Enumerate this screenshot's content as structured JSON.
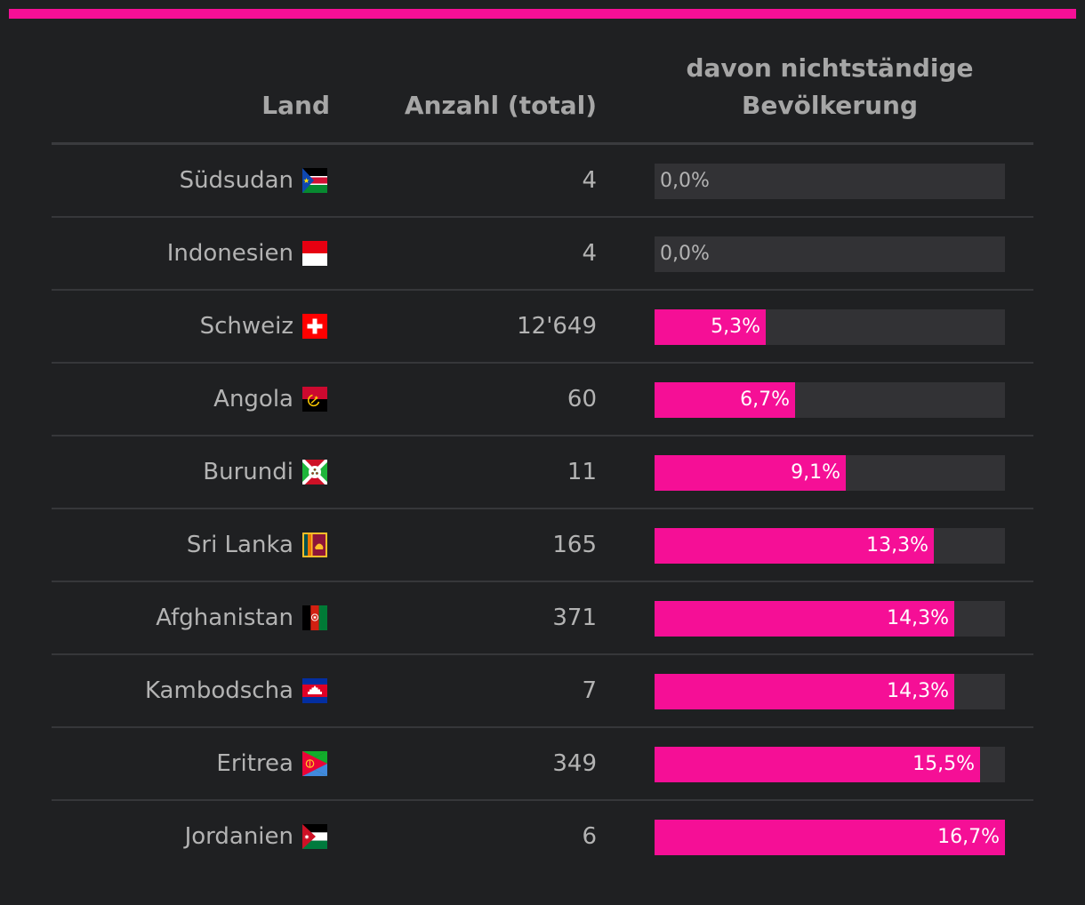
{
  "colors": {
    "accent": "#f50f96",
    "background": "#1f2022",
    "track": "#323235",
    "text": "#b3b3b3",
    "header_text": "#a6a6a6"
  },
  "header": {
    "land": "Land",
    "count": "Anzahl (total)",
    "share_line1": "davon nichtständige",
    "share_line2": "Bevölkerung"
  },
  "chart_data": {
    "type": "table",
    "columns": [
      "Land",
      "Anzahl (total)",
      "davon nichtständige Bevölkerung"
    ],
    "bar_max_percent": 16.7,
    "rows": [
      {
        "land": "Südsudan",
        "flag": "south-sudan-flag-icon",
        "count": "4",
        "percent": 0.0,
        "label": "0,0%"
      },
      {
        "land": "Indonesien",
        "flag": "indonesia-flag-icon",
        "count": "4",
        "percent": 0.0,
        "label": "0,0%"
      },
      {
        "land": "Schweiz",
        "flag": "switzerland-flag-icon",
        "count": "12'649",
        "percent": 5.3,
        "label": "5,3%"
      },
      {
        "land": "Angola",
        "flag": "angola-flag-icon",
        "count": "60",
        "percent": 6.7,
        "label": "6,7%"
      },
      {
        "land": "Burundi",
        "flag": "burundi-flag-icon",
        "count": "11",
        "percent": 9.1,
        "label": "9,1%"
      },
      {
        "land": "Sri Lanka",
        "flag": "sri-lanka-flag-icon",
        "count": "165",
        "percent": 13.3,
        "label": "13,3%"
      },
      {
        "land": "Afghanistan",
        "flag": "afghanistan-flag-icon",
        "count": "371",
        "percent": 14.3,
        "label": "14,3%"
      },
      {
        "land": "Kambodscha",
        "flag": "cambodia-flag-icon",
        "count": "7",
        "percent": 14.3,
        "label": "14,3%"
      },
      {
        "land": "Eritrea",
        "flag": "eritrea-flag-icon",
        "count": "349",
        "percent": 15.5,
        "label": "15,5%"
      },
      {
        "land": "Jordanien",
        "flag": "jordan-flag-icon",
        "count": "6",
        "percent": 16.7,
        "label": "16,7%"
      }
    ]
  }
}
